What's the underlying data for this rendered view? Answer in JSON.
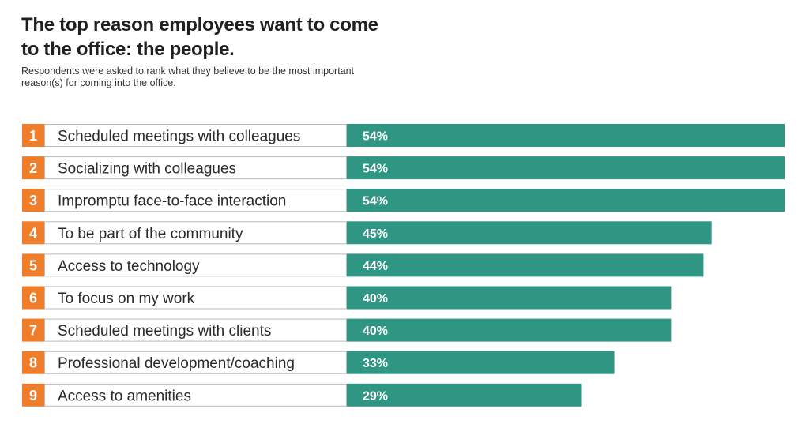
{
  "chart_data": {
    "type": "bar",
    "orientation": "horizontal",
    "title": "The top reason employees want to come to the office: the people.",
    "subtitle": "Respondents were asked to rank what they believe to be the most important reason(s) for coming into the office.",
    "categories": [
      "Scheduled meetings with colleagues",
      "Socializing with colleagues",
      "Impromptu face-to-face interaction",
      "To be part of the community",
      "Access to technology",
      "To focus on my work",
      "Scheduled meetings with clients",
      "Professional development/coaching",
      "Access to amenities"
    ],
    "ranks": [
      "1",
      "2",
      "3",
      "4",
      "5",
      "6",
      "7",
      "8",
      "9"
    ],
    "values": [
      54,
      54,
      54,
      45,
      44,
      40,
      40,
      33,
      29
    ],
    "value_labels": [
      "54%",
      "54%",
      "54%",
      "45%",
      "44%",
      "40%",
      "40%",
      "33%",
      "29%"
    ],
    "xlim": [
      0,
      54
    ],
    "colors": {
      "bar": "#2f9683",
      "rank_badge": "#ef7d2a",
      "row_border": "#b9b9b9"
    }
  }
}
